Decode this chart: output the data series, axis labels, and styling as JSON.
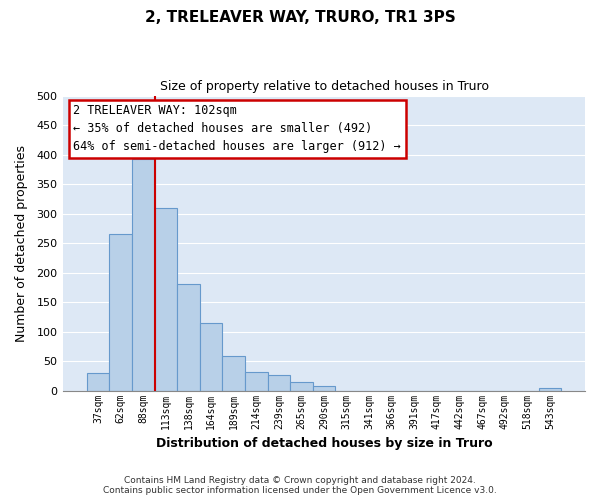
{
  "title": "2, TRELEAVER WAY, TRURO, TR1 3PS",
  "subtitle": "Size of property relative to detached houses in Truro",
  "xlabel": "Distribution of detached houses by size in Truro",
  "ylabel": "Number of detached properties",
  "bar_labels": [
    "37sqm",
    "62sqm",
    "88sqm",
    "113sqm",
    "138sqm",
    "164sqm",
    "189sqm",
    "214sqm",
    "239sqm",
    "265sqm",
    "290sqm",
    "315sqm",
    "341sqm",
    "366sqm",
    "391sqm",
    "417sqm",
    "442sqm",
    "467sqm",
    "492sqm",
    "518sqm",
    "543sqm"
  ],
  "bar_values": [
    30,
    265,
    393,
    310,
    180,
    115,
    58,
    32,
    26,
    15,
    8,
    0,
    0,
    0,
    0,
    0,
    0,
    0,
    0,
    0,
    5
  ],
  "bar_color": "#b8d0e8",
  "bar_edge_color": "#6699cc",
  "fig_background_color": "#ffffff",
  "plot_background_color": "#dde8f5",
  "grid_color": "#ffffff",
  "ylim": [
    0,
    500
  ],
  "yticks": [
    0,
    50,
    100,
    150,
    200,
    250,
    300,
    350,
    400,
    450,
    500
  ],
  "red_line_bar_index": 2,
  "annotation_title": "2 TRELEAVER WAY: 102sqm",
  "annotation_line1": "← 35% of detached houses are smaller (492)",
  "annotation_line2": "64% of semi-detached houses are larger (912) →",
  "annotation_box_color": "#ffffff",
  "annotation_border_color": "#cc0000",
  "footer_line1": "Contains HM Land Registry data © Crown copyright and database right 2024.",
  "footer_line2": "Contains public sector information licensed under the Open Government Licence v3.0."
}
